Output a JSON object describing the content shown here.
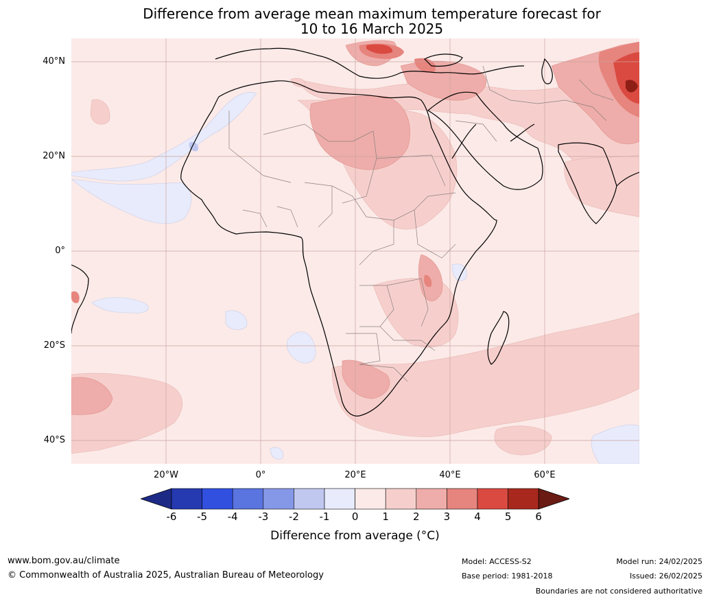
{
  "title_line1": "Difference from average mean maximum temperature forecast for",
  "title_line2": "10 to 16 March 2025",
  "lat_labels": [
    "40°N",
    "20°N",
    "0°",
    "20°S",
    "40°S"
  ],
  "lon_labels": [
    "20°W",
    "0°",
    "20°E",
    "40°E",
    "60°E"
  ],
  "colorbar": {
    "ticks": [
      "-6",
      "-5",
      "-4",
      "-3",
      "-2",
      "-1",
      "0",
      "1",
      "2",
      "3",
      "4",
      "5",
      "6"
    ],
    "colors": [
      "#1c2a86",
      "#2539b0",
      "#3150e0",
      "#5a74e0",
      "#8598e8",
      "#c0c8f0",
      "#e8ebfb",
      "#fbeae8",
      "#f6cfcc",
      "#eeadaa",
      "#e6847e",
      "#da4a40",
      "#a8281e",
      "#6a1b14"
    ],
    "label": "Difference from average (°C)"
  },
  "footer": {
    "url": "www.bom.gov.au/climate",
    "copyright": "© Commonwealth of Australia 2025, Australian Bureau of Meteorology",
    "model": "Model: ACCESS-S2",
    "base_period": "Base period: 1981-2018",
    "model_run": "Model run: 24/02/2025",
    "issued": "Issued: 26/02/2025",
    "disclaimer": "Boundaries are not considered authoritative"
  }
}
